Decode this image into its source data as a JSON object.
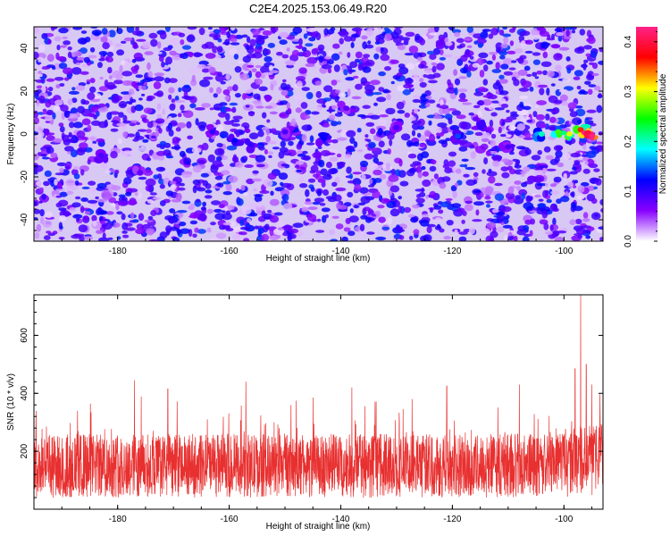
{
  "title": "C2E4.2025.153.06.49.R20",
  "chart_data": [
    {
      "type": "heatmap",
      "xlabel": "Height of straight line (km)",
      "ylabel": "Frequency (Hz)",
      "xlim": [
        -195,
        -93
      ],
      "ylim": [
        -50,
        50
      ],
      "xticks": [
        -180,
        -160,
        -140,
        -120,
        -100
      ],
      "yticks": [
        -40,
        -20,
        0,
        20,
        40
      ],
      "colorbar": {
        "label": "Normalized spectral amplitude",
        "range": [
          0,
          0.43
        ],
        "ticks": [
          0.0,
          0.1,
          0.2,
          0.3,
          0.4
        ],
        "colormap": [
          "#ffffff",
          "#8800ff",
          "#0000ff",
          "#00ffff",
          "#00ff00",
          "#ffff00",
          "#ff0000",
          "#ff2288"
        ]
      },
      "background_level": 0.03,
      "hotspots": [
        {
          "x": -183,
          "y": -10,
          "v": 0.09
        },
        {
          "x": -176,
          "y": -18,
          "v": 0.08
        },
        {
          "x": -163,
          "y": 1,
          "v": 0.1
        },
        {
          "x": -159,
          "y": -3,
          "v": 0.12
        },
        {
          "x": -156,
          "y": -5,
          "v": 0.1
        },
        {
          "x": -150,
          "y": 1,
          "v": 0.09
        },
        {
          "x": -143,
          "y": -2,
          "v": 0.12
        },
        {
          "x": -139,
          "y": 12,
          "v": 0.08
        },
        {
          "x": -130,
          "y": 3,
          "v": 0.09
        },
        {
          "x": -119,
          "y": -1,
          "v": 0.14
        },
        {
          "x": -115,
          "y": 3,
          "v": 0.1
        },
        {
          "x": -110,
          "y": -6,
          "v": 0.09
        },
        {
          "x": -104,
          "y": 0,
          "v": 0.2
        },
        {
          "x": -101,
          "y": 1,
          "v": 0.26
        },
        {
          "x": -99,
          "y": 0,
          "v": 0.3
        },
        {
          "x": -97,
          "y": 2,
          "v": 0.36
        },
        {
          "x": -95,
          "y": -1,
          "v": 0.43
        }
      ]
    },
    {
      "type": "line",
      "xlabel": "Height of straight line (km)",
      "ylabel": "SNR (10 * v/v)",
      "xlim": [
        -195,
        -93
      ],
      "ylim": [
        0,
        740
      ],
      "xticks": [
        -180,
        -160,
        -140,
        -120,
        -100
      ],
      "yticks": [
        200,
        400,
        600
      ],
      "color": "#e83030",
      "baseline_range": [
        40,
        260
      ],
      "typical_peak": 340,
      "peaks": [
        {
          "x": -177,
          "y": 445
        },
        {
          "x": -171,
          "y": 415
        },
        {
          "x": -157,
          "y": 440
        },
        {
          "x": -138,
          "y": 420
        },
        {
          "x": -121,
          "y": 425
        },
        {
          "x": -108,
          "y": 430
        },
        {
          "x": -98,
          "y": 485
        },
        {
          "x": -97,
          "y": 740
        },
        {
          "x": -96,
          "y": 500
        },
        {
          "x": -95,
          "y": 430
        }
      ]
    }
  ]
}
